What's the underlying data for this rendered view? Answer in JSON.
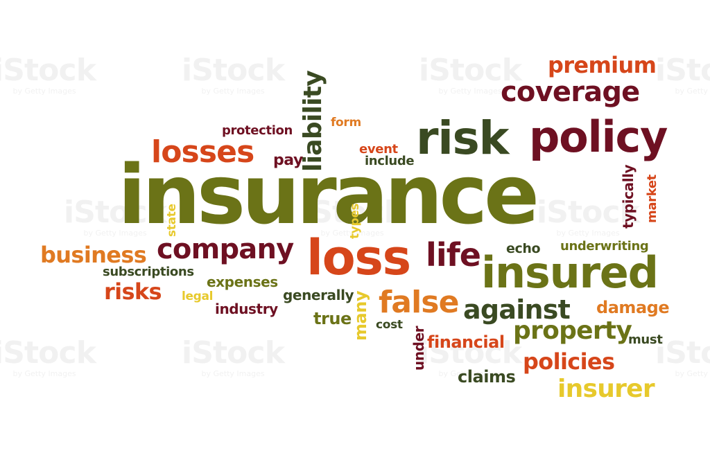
{
  "watermark": {
    "logo": "iStock",
    "caption": "by Getty Images"
  },
  "colors": {
    "olive": "#6b7317",
    "dark_green": "#3a4a22",
    "maroon": "#6e1022",
    "orange_red": "#d6461a",
    "orange": "#e07a22",
    "yellow": "#e7c92c"
  },
  "words": {
    "insurance": "insurance",
    "risk": "risk",
    "policy": "policy",
    "coverage": "coverage",
    "premium": "premium",
    "losses": "losses",
    "liability": "liability",
    "protection": "protection",
    "form": "form",
    "event": "event",
    "include": "include",
    "pay": "pay",
    "state": "state",
    "types": "types",
    "typically": "typically",
    "market": "market",
    "company": "company",
    "loss": "loss",
    "life": "life",
    "echo": "echo",
    "underwriting": "underwriting",
    "insured": "insured",
    "business": "business",
    "subscriptions": "subscriptions",
    "risks": "risks",
    "expenses": "expenses",
    "legal": "legal",
    "industry": "industry",
    "generally": "generally",
    "true": "true",
    "many": "many",
    "false": "false",
    "against": "against",
    "damage": "damage",
    "cost": "cost",
    "under": "under",
    "financial": "financial",
    "property": "property",
    "must": "must",
    "policies": "policies",
    "claims": "claims",
    "insurer": "insurer"
  }
}
